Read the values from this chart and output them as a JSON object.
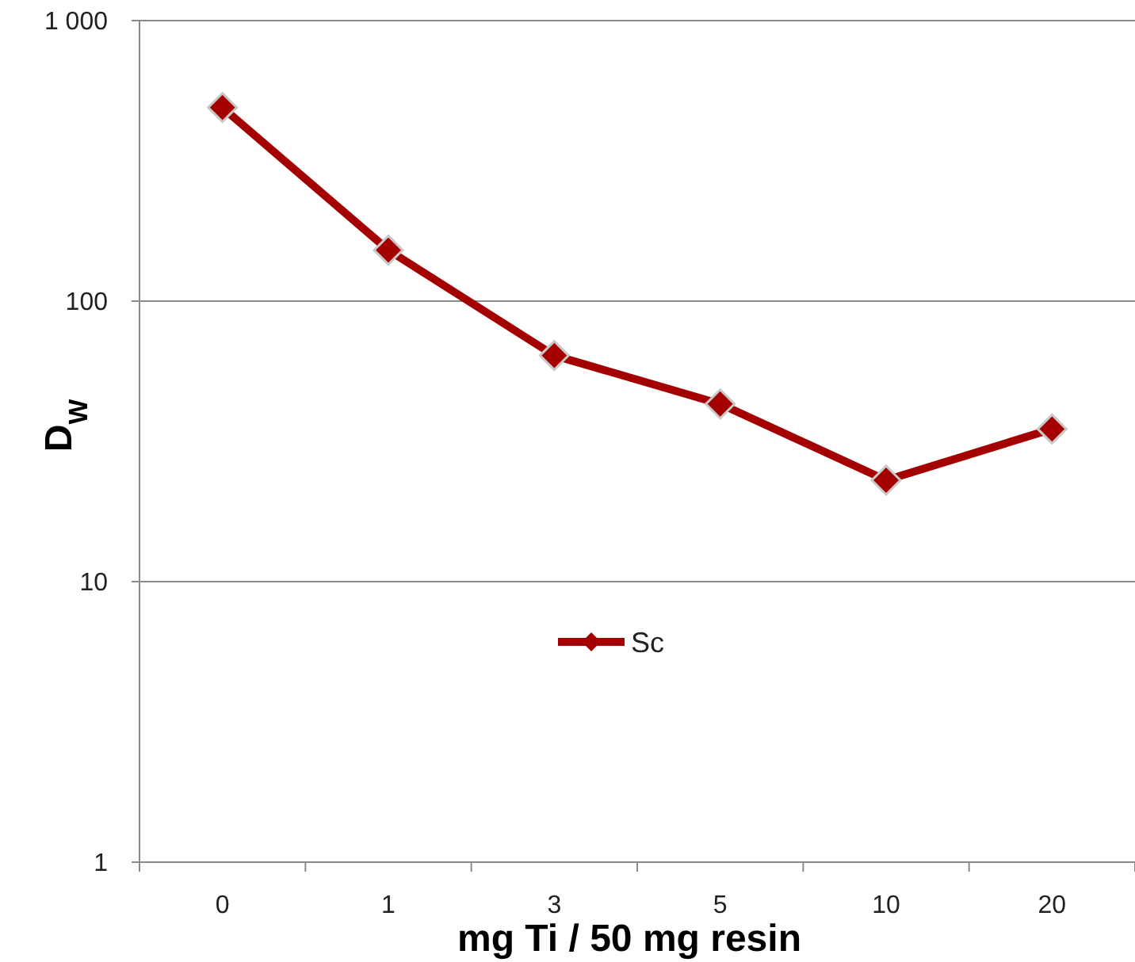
{
  "chart_data": {
    "type": "line",
    "xlabel": "mg Ti / 50 mg resin",
    "ylabel": "D$_{W}$",
    "categories": [
      "0",
      "1",
      "3",
      "5",
      "10",
      "20"
    ],
    "series": [
      {
        "name": "Sc",
        "color": "#a50000",
        "values": [
          490,
          152,
          64,
          43,
          23,
          35
        ]
      }
    ],
    "log": true,
    "ylim": [
      1,
      1000
    ],
    "yticks": [
      1,
      10,
      100,
      {
        "value": 1000,
        "label": "1 000"
      }
    ],
    "grid": "y",
    "legend": "center",
    "marker": "diamond",
    "line_style": "solid"
  }
}
